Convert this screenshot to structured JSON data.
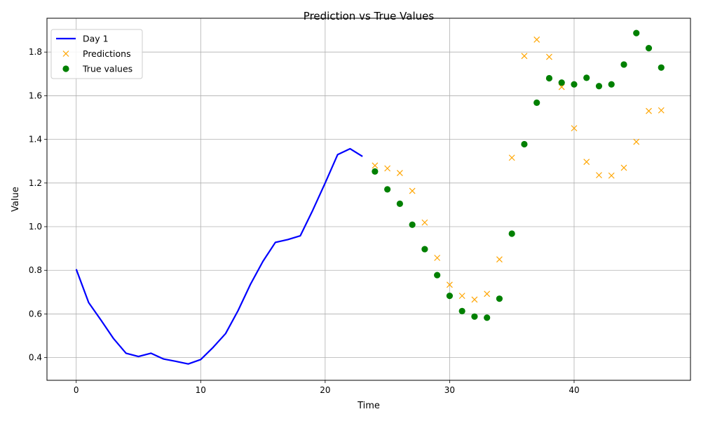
{
  "chart_data": {
    "type": "line",
    "title": "Prediction vs True Values",
    "xlabel": "Time",
    "ylabel": "Value",
    "xlim": [
      -2.35,
      49.35
    ],
    "ylim": [
      0.296,
      1.955
    ],
    "xticks": [
      0,
      10,
      20,
      30,
      40
    ],
    "yticks": [
      0.4,
      0.6,
      0.8,
      1.0,
      1.2,
      1.4,
      1.6,
      1.8
    ],
    "grid": true,
    "legend_position": "top-left",
    "colors": {
      "line": "#0000ff",
      "predictions": "#ffa500",
      "true_values": "#008000"
    },
    "series": [
      {
        "name": "Day 1",
        "kind": "line",
        "x": [
          0,
          1,
          2,
          3,
          4,
          5,
          6,
          7,
          8,
          9,
          10,
          11,
          12,
          13,
          14,
          15,
          16,
          17,
          18,
          19,
          20,
          21,
          22,
          23
        ],
        "y": [
          0.805,
          0.652,
          0.571,
          0.487,
          0.42,
          0.405,
          0.42,
          0.394,
          0.383,
          0.371,
          0.391,
          0.447,
          0.51,
          0.615,
          0.736,
          0.841,
          0.928,
          0.941,
          0.958,
          1.075,
          1.2,
          1.33,
          1.357,
          1.322
        ]
      },
      {
        "name": "Predictions",
        "kind": "x-marker",
        "x": [
          24,
          25,
          26,
          27,
          28,
          29,
          30,
          31,
          32,
          33,
          34,
          35,
          36,
          37,
          38,
          39,
          40,
          41,
          42,
          43,
          44,
          45,
          46,
          47
        ],
        "y": [
          1.28,
          1.267,
          1.246,
          1.164,
          1.019,
          0.857,
          0.734,
          0.683,
          0.666,
          0.692,
          0.85,
          1.316,
          1.782,
          1.857,
          1.778,
          1.64,
          1.451,
          1.297,
          1.236,
          1.234,
          1.27,
          1.389,
          1.53,
          1.533
        ]
      },
      {
        "name": "True values",
        "kind": "dot-marker",
        "x": [
          24,
          25,
          26,
          27,
          28,
          29,
          30,
          31,
          32,
          33,
          34,
          35,
          36,
          37,
          38,
          39,
          40,
          41,
          42,
          43,
          44,
          45,
          46,
          47
        ],
        "y": [
          1.253,
          1.171,
          1.105,
          1.009,
          0.897,
          0.778,
          0.683,
          0.613,
          0.588,
          0.583,
          0.67,
          0.968,
          1.378,
          1.568,
          1.68,
          1.66,
          1.652,
          1.682,
          1.644,
          1.652,
          1.743,
          1.887,
          1.818,
          1.729
        ]
      }
    ]
  }
}
